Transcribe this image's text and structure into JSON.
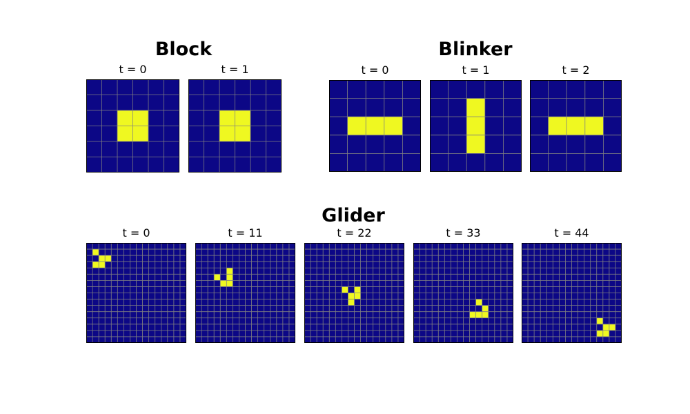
{
  "colors": {
    "dead": "#0c0786",
    "alive": "#eff821",
    "gridline": "#808080",
    "border": "#000000"
  },
  "groups": [
    {
      "title": "Block",
      "panels": [
        {
          "label": "t = 0",
          "rows": 6,
          "cols": 6,
          "alive": [
            [
              2,
              2
            ],
            [
              2,
              3
            ],
            [
              3,
              2
            ],
            [
              3,
              3
            ]
          ]
        },
        {
          "label": "t = 1",
          "rows": 6,
          "cols": 6,
          "alive": [
            [
              2,
              2
            ],
            [
              2,
              3
            ],
            [
              3,
              2
            ],
            [
              3,
              3
            ]
          ]
        }
      ]
    },
    {
      "title": "Blinker",
      "panels": [
        {
          "label": "t = 0",
          "rows": 5,
          "cols": 5,
          "alive": [
            [
              2,
              1
            ],
            [
              2,
              2
            ],
            [
              2,
              3
            ]
          ]
        },
        {
          "label": "t = 1",
          "rows": 5,
          "cols": 5,
          "alive": [
            [
              1,
              2
            ],
            [
              2,
              2
            ],
            [
              3,
              2
            ]
          ]
        },
        {
          "label": "t = 2",
          "rows": 5,
          "cols": 5,
          "alive": [
            [
              2,
              1
            ],
            [
              2,
              2
            ],
            [
              2,
              3
            ]
          ]
        }
      ]
    },
    {
      "title": "Glider",
      "panels": [
        {
          "label": "t = 0",
          "rows": 16,
          "cols": 16,
          "alive": [
            [
              1,
              1
            ],
            [
              2,
              2
            ],
            [
              2,
              3
            ],
            [
              3,
              1
            ],
            [
              3,
              2
            ]
          ]
        },
        {
          "label": "t = 11",
          "rows": 16,
          "cols": 16,
          "alive": [
            [
              4,
              5
            ],
            [
              5,
              3
            ],
            [
              5,
              5
            ],
            [
              6,
              4
            ],
            [
              6,
              5
            ]
          ]
        },
        {
          "label": "t = 22",
          "rows": 16,
          "cols": 16,
          "alive": [
            [
              7,
              6
            ],
            [
              7,
              8
            ],
            [
              8,
              7
            ],
            [
              8,
              8
            ],
            [
              9,
              7
            ]
          ]
        },
        {
          "label": "t = 33",
          "rows": 16,
          "cols": 16,
          "alive": [
            [
              9,
              10
            ],
            [
              10,
              11
            ],
            [
              11,
              9
            ],
            [
              11,
              10
            ],
            [
              11,
              11
            ]
          ]
        },
        {
          "label": "t = 44",
          "rows": 16,
          "cols": 16,
          "alive": [
            [
              12,
              12
            ],
            [
              13,
              13
            ],
            [
              13,
              14
            ],
            [
              14,
              12
            ],
            [
              14,
              13
            ]
          ]
        }
      ]
    }
  ]
}
